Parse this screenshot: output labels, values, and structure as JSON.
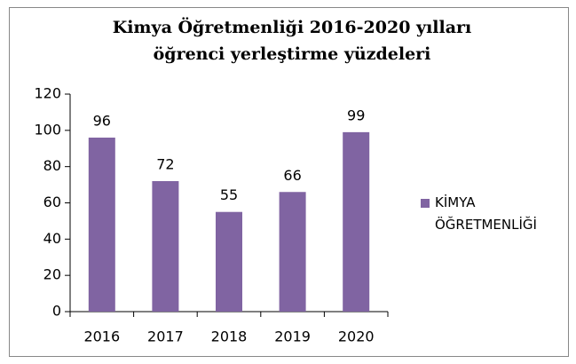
{
  "chart_data": {
    "type": "bar",
    "title": "Kimya Öğretmenliği 2016-2020 yılları öğrenci yerleştirme yüzdeleri",
    "categories": [
      "2016",
      "2017",
      "2018",
      "2019",
      "2020"
    ],
    "series": [
      {
        "name": "KİMYA ÖĞRETMENLİĞİ",
        "color": "#8064a2",
        "values": [
          96,
          72,
          55,
          66,
          99
        ]
      }
    ],
    "ylim": [
      0,
      120
    ],
    "yticks": [
      0,
      20,
      40,
      60,
      80,
      100,
      120
    ],
    "grid": false,
    "legend": "right"
  }
}
